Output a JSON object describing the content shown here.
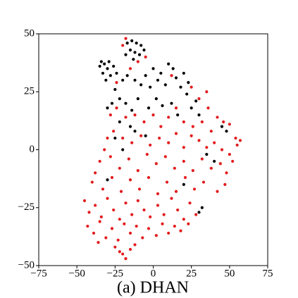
{
  "chart_data": {
    "type": "scatter",
    "title": "(a) DHAN",
    "xlim": [
      -75,
      75
    ],
    "ylim": [
      -50,
      50
    ],
    "xticks": [
      {
        "value": -75,
        "label": "−75"
      },
      {
        "value": -50,
        "label": "−50"
      },
      {
        "value": -25,
        "label": "−25"
      },
      0,
      25,
      50,
      75
    ],
    "yticks": [
      {
        "value": -50,
        "label": "−50"
      },
      {
        "value": -25,
        "label": "−25"
      },
      0,
      25,
      50
    ],
    "grid": false,
    "series": [
      {
        "color": "#000000",
        "x": [
          -17,
          -14,
          -11,
          -8,
          -15,
          -12,
          -9,
          -18,
          -6,
          -13,
          -34,
          -32,
          -35,
          -30,
          -33,
          -28,
          -31,
          -26,
          -29,
          -24,
          -20,
          -17,
          -12,
          -8,
          -5,
          -2,
          3,
          0,
          5,
          8,
          10,
          13,
          15,
          18,
          20,
          23,
          22,
          -25,
          -22,
          -27,
          -30,
          -18,
          -14,
          -10,
          -3,
          2,
          6,
          12,
          16,
          25,
          28,
          30,
          -22,
          -15,
          -25,
          -20,
          -12,
          -5,
          45,
          48,
          40,
          -30,
          32,
          30,
          20,
          35
        ],
        "y": [
          46,
          47,
          46,
          45,
          43,
          42,
          41,
          41,
          43,
          39,
          38,
          37,
          36,
          35,
          33,
          32,
          30,
          36,
          38,
          33,
          30,
          32,
          30,
          28,
          32,
          27,
          30,
          35,
          33,
          28,
          37,
          35,
          31,
          27,
          33,
          29,
          24,
          26,
          22,
          20,
          18,
          20,
          17,
          22,
          18,
          22,
          19,
          20,
          15,
          18,
          21,
          15,
          12,
          10,
          5,
          0,
          8,
          6,
          10,
          8,
          -5,
          -13,
          -25,
          -27,
          -15,
          -2
        ]
      },
      {
        "color": "#e31a1c",
        "x": [
          -18,
          -20,
          -10,
          -5,
          12,
          25,
          30,
          35,
          -15,
          -24,
          -28,
          -24,
          -18,
          -12,
          -6,
          0,
          5,
          10,
          15,
          20,
          26,
          32,
          38,
          42,
          46,
          50,
          54,
          36,
          -30,
          -26,
          -20,
          -14,
          -8,
          -2,
          4,
          10,
          15,
          20,
          25,
          30,
          35,
          40,
          45,
          50,
          55,
          57,
          -32,
          -35,
          -28,
          -22,
          -16,
          -10,
          -4,
          2,
          8,
          14,
          20,
          26,
          32,
          38,
          44,
          48,
          52,
          -38,
          -40,
          -33,
          -27,
          -21,
          -15,
          -9,
          -3,
          3,
          9,
          15,
          21,
          27,
          33,
          42,
          47,
          -45,
          -42,
          -38,
          -34,
          -30,
          -26,
          -22,
          -18,
          -14,
          -10,
          -6,
          -2,
          3,
          7,
          12,
          16,
          20,
          24,
          28,
          -43,
          -39,
          -35,
          -31,
          -27,
          -23,
          -19,
          -15,
          -11,
          -7,
          -3,
          2,
          6,
          10,
          14,
          18,
          23,
          -36,
          -25,
          -20,
          -18,
          -15,
          -12,
          -22
        ],
        "y": [
          48,
          45,
          38,
          40,
          32,
          27,
          22,
          25,
          35,
          29,
          15,
          18,
          14,
          15,
          12,
          15,
          10,
          14,
          18,
          12,
          10,
          12,
          8,
          14,
          12,
          11,
          5,
          18,
          5,
          8,
          5,
          3,
          6,
          2,
          5,
          3,
          7,
          1,
          6,
          4,
          1,
          3,
          0,
          -2,
          2,
          4,
          0,
          -5,
          -3,
          -8,
          -4,
          -9,
          -2,
          -6,
          -3,
          -8,
          -5,
          -9,
          -4,
          -8,
          -6,
          -10,
          -5,
          -10,
          -14,
          -17,
          -12,
          -18,
          -13,
          -17,
          -12,
          -19,
          -14,
          -18,
          -12,
          -17,
          -14,
          -18,
          -15,
          -22,
          -27,
          -24,
          -29,
          -21,
          -26,
          -30,
          -23,
          -28,
          -22,
          -26,
          -29,
          -24,
          -28,
          -21,
          -26,
          -30,
          -23,
          -28,
          -33,
          -36,
          -31,
          -38,
          -34,
          -39,
          -32,
          -36,
          -33,
          -38,
          -34,
          -37,
          -32,
          -36,
          -33,
          -35,
          -32,
          -40,
          -42,
          -45,
          -47,
          -43,
          -41,
          -44
        ]
      }
    ]
  }
}
